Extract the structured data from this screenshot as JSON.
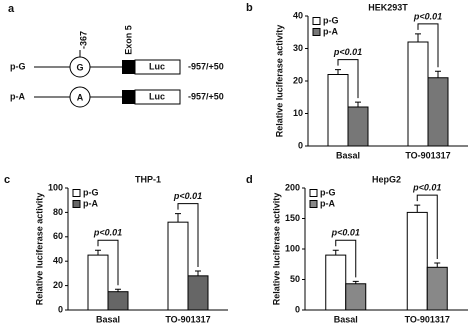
{
  "diagram": {
    "label": "a",
    "position_label": "-367",
    "exon_label": "Exon 5",
    "constructs": [
      {
        "name": "p-G",
        "allele": "G",
        "reporter": "Luc",
        "range": "-957/+50"
      },
      {
        "name": "p-A",
        "allele": "A",
        "reporter": "Luc",
        "range": "-957/+50"
      }
    ]
  },
  "chart_data": [
    {
      "type": "bar",
      "label": "b",
      "title": "HEK293T",
      "y_label": "Relative luciferase activity",
      "categories": [
        "Basal",
        "TO-901317"
      ],
      "series": [
        {
          "name": "p-G",
          "color": "#ffffff",
          "values": [
            22,
            32
          ],
          "errors": [
            1.5,
            2.5
          ]
        },
        {
          "name": "p-A",
          "color": "#777777",
          "values": [
            12,
            21
          ],
          "errors": [
            1.5,
            2
          ]
        }
      ],
      "annotations": [
        "p<0.01",
        "p<0.01"
      ],
      "ylim": [
        0,
        40
      ],
      "yticks": [
        0,
        10,
        20,
        30,
        40
      ],
      "legend": "top-left"
    },
    {
      "type": "bar",
      "label": "c",
      "title": "THP-1",
      "y_label": "Relative luciferase activity",
      "categories": [
        "Basal",
        "TO-901317"
      ],
      "series": [
        {
          "name": "p-G",
          "color": "#ffffff",
          "values": [
            45,
            72
          ],
          "errors": [
            4,
            7
          ]
        },
        {
          "name": "p-A",
          "color": "#666666",
          "values": [
            15,
            28
          ],
          "errors": [
            2,
            4
          ]
        }
      ],
      "annotations": [
        "p<0.01",
        "p<0.01"
      ],
      "ylim": [
        0,
        100
      ],
      "yticks": [
        0,
        20,
        40,
        60,
        80,
        100
      ],
      "legend": "top-left"
    },
    {
      "type": "bar",
      "label": "d",
      "title": "HepG2",
      "y_label": "Relative luciferase activity",
      "categories": [
        "Basal",
        "TO-901317"
      ],
      "series": [
        {
          "name": "p-G",
          "color": "#ffffff",
          "values": [
            90,
            160
          ],
          "errors": [
            8,
            12
          ]
        },
        {
          "name": "p-A",
          "color": "#888888",
          "values": [
            43,
            70
          ],
          "errors": [
            4,
            7
          ]
        }
      ],
      "annotations": [
        "p<0.01",
        "p<0.01"
      ],
      "ylim": [
        0,
        200
      ],
      "yticks": [
        0,
        50,
        100,
        150,
        200
      ],
      "legend": "top-left"
    }
  ]
}
